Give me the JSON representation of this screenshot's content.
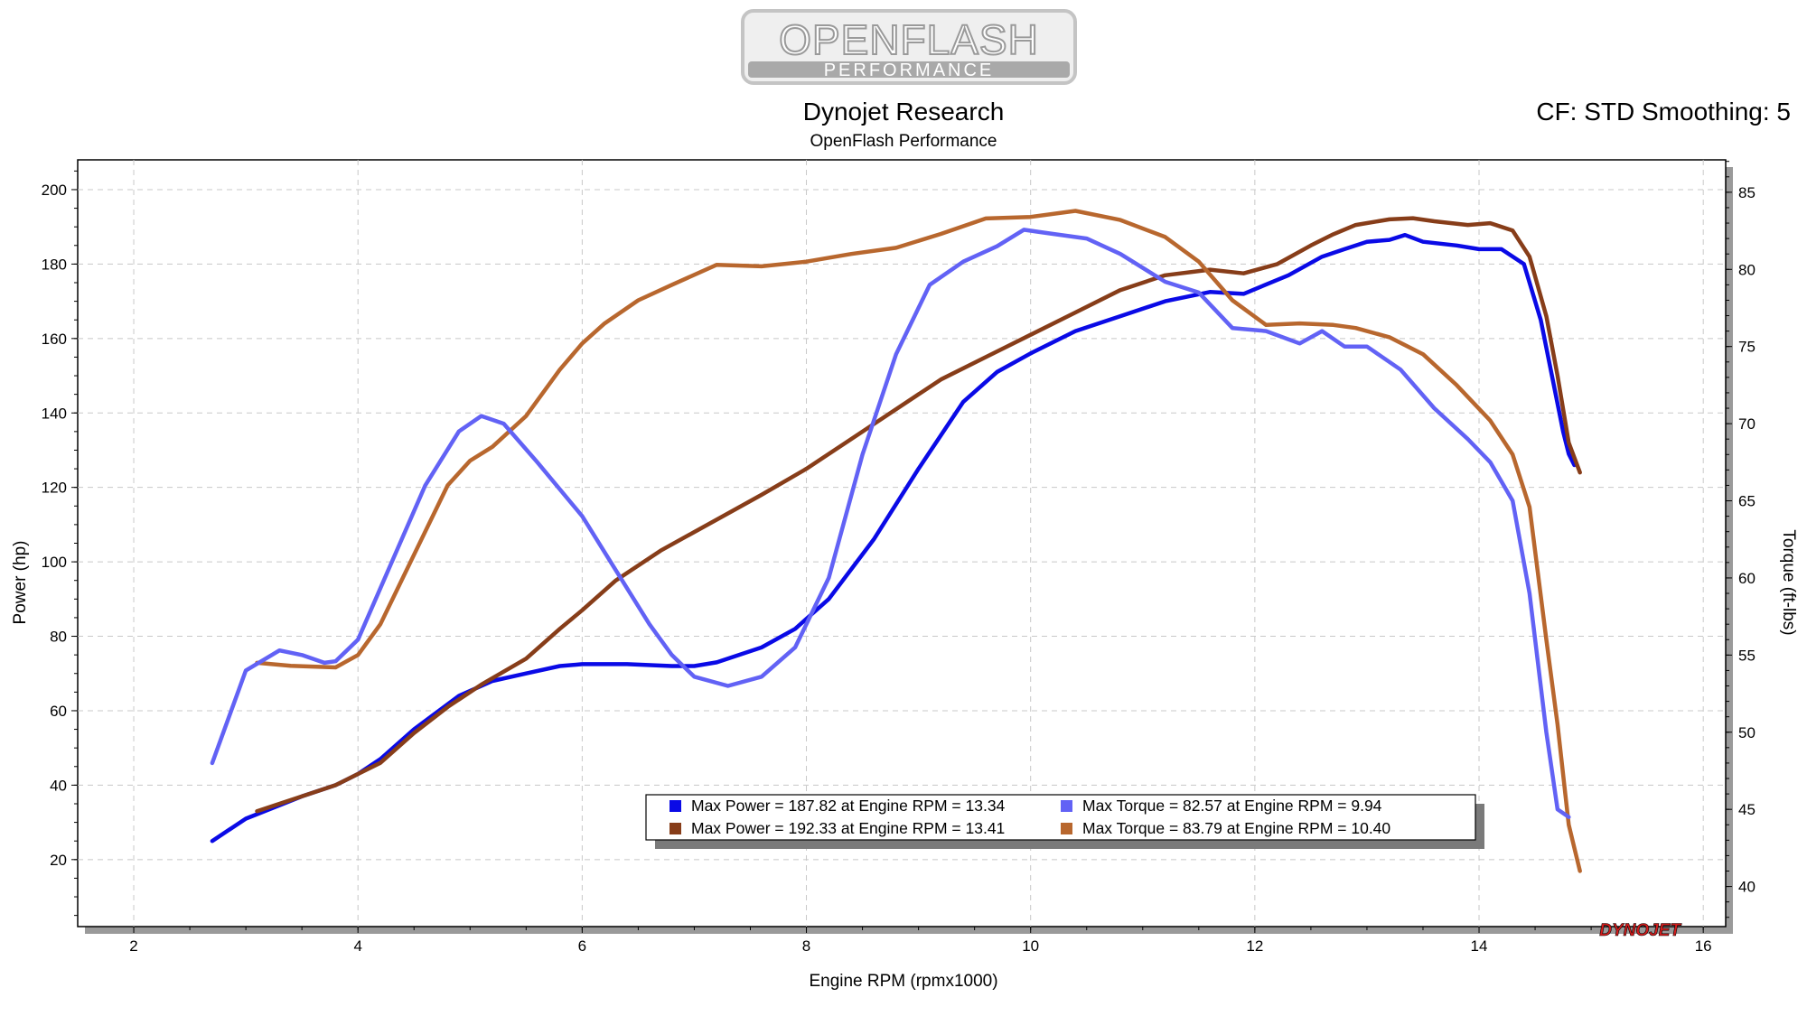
{
  "logo": {
    "line1": "OPENFLASH",
    "line2": "PERFORMANCE"
  },
  "header": {
    "title": "Dynojet Research",
    "subtitle": "OpenFlash Performance",
    "correction": "CF: STD Smoothing: 5"
  },
  "brand": {
    "wordmark": "DYNOJET"
  },
  "chart_data": {
    "type": "line",
    "xlabel": "Engine RPM (rpmx1000)",
    "ylabel": "Power (hp)",
    "y2label": "Torque (ft-lbs)",
    "xlim": [
      1.5,
      16.2
    ],
    "ylim": [
      2,
      208
    ],
    "y2lim": [
      37.4,
      87.1
    ],
    "xticks": [
      2,
      4,
      6,
      8,
      10,
      12,
      14,
      16
    ],
    "yticks": [
      20,
      40,
      60,
      80,
      100,
      120,
      140,
      160,
      180,
      200
    ],
    "y2ticks": [
      40,
      45,
      50,
      55,
      60,
      65,
      70,
      75,
      80,
      85
    ],
    "grid": true,
    "legend_position": "bottom-center",
    "series": [
      {
        "color": "#0a0ae6",
        "axis": "left",
        "legend": "Max Power = 187.82 at Engine RPM = 13.34",
        "x": [
          2.7,
          3.0,
          3.5,
          3.8,
          4.0,
          4.2,
          4.5,
          4.9,
          5.2,
          5.5,
          5.8,
          6.0,
          6.4,
          6.8,
          7.0,
          7.2,
          7.6,
          7.9,
          8.2,
          8.6,
          9.0,
          9.4,
          9.7,
          10.0,
          10.4,
          10.8,
          11.2,
          11.6,
          11.9,
          12.3,
          12.6,
          12.8,
          13.0,
          13.2,
          13.34,
          13.5,
          13.8,
          14.0,
          14.2,
          14.4,
          14.55,
          14.65,
          14.75,
          14.8,
          14.85
        ],
        "y": [
          25,
          31,
          37,
          40,
          43,
          47,
          55,
          64,
          68,
          70,
          72,
          72.5,
          72.5,
          72,
          72,
          73,
          77,
          82,
          90,
          106,
          125,
          143,
          151,
          156,
          162,
          166,
          170,
          172.5,
          172,
          177,
          182,
          184,
          186,
          186.5,
          187.82,
          186,
          185,
          184,
          184,
          180,
          165,
          150,
          135,
          129,
          126
        ]
      },
      {
        "color": "#873d19",
        "axis": "left",
        "legend": "Max Power = 192.33 at Engine RPM = 13.41",
        "x": [
          3.1,
          3.5,
          3.8,
          4.0,
          4.2,
          4.5,
          4.8,
          5.1,
          5.5,
          5.8,
          6.0,
          6.3,
          6.7,
          7.0,
          7.3,
          7.6,
          8.0,
          8.4,
          8.8,
          9.2,
          9.6,
          10.0,
          10.4,
          10.8,
          11.2,
          11.6,
          11.9,
          12.2,
          12.5,
          12.7,
          12.9,
          13.2,
          13.41,
          13.6,
          13.9,
          14.1,
          14.3,
          14.45,
          14.6,
          14.7,
          14.8,
          14.9
        ],
        "y": [
          33,
          37,
          40,
          43,
          46,
          54,
          61,
          67,
          74,
          82,
          87,
          95,
          103,
          108,
          113,
          118,
          125,
          133,
          141,
          149,
          155,
          161,
          167,
          173,
          177,
          178.5,
          177.5,
          180,
          185,
          188,
          190.5,
          192,
          192.33,
          191.5,
          190.5,
          191,
          189,
          182,
          166,
          150,
          132,
          124
        ]
      },
      {
        "color": "#6262f5",
        "axis": "right",
        "legend": "Max Torque = 82.57 at Engine RPM = 9.94",
        "x": [
          2.7,
          3.0,
          3.3,
          3.5,
          3.7,
          3.8,
          4.0,
          4.3,
          4.6,
          4.9,
          5.1,
          5.3,
          5.6,
          6.0,
          6.3,
          6.6,
          6.8,
          7.0,
          7.3,
          7.6,
          7.9,
          8.2,
          8.5,
          8.8,
          9.1,
          9.4,
          9.7,
          9.94,
          10.2,
          10.5,
          10.8,
          11.2,
          11.5,
          11.8,
          12.1,
          12.4,
          12.6,
          12.8,
          13.0,
          13.3,
          13.6,
          13.9,
          14.1,
          14.3,
          14.45,
          14.6,
          14.7,
          14.8
        ],
        "y": [
          48,
          54,
          55.3,
          55,
          54.5,
          54.6,
          56,
          61,
          66,
          69.5,
          70.5,
          70,
          67.5,
          64,
          60.5,
          57,
          55,
          53.6,
          53,
          53.6,
          55.5,
          60,
          68,
          74.5,
          79,
          80.5,
          81.5,
          82.57,
          82.3,
          82,
          81,
          79.2,
          78.5,
          76.2,
          76,
          75.2,
          76,
          75,
          75,
          73.5,
          71,
          69,
          67.5,
          65,
          59,
          50,
          45,
          44.5
        ]
      },
      {
        "color": "#b8672e",
        "axis": "right",
        "legend": "Max Torque = 83.79 at Engine RPM = 10.40",
        "x": [
          3.1,
          3.4,
          3.8,
          4.0,
          4.2,
          4.5,
          4.8,
          5.0,
          5.2,
          5.5,
          5.8,
          6.0,
          6.2,
          6.5,
          6.8,
          7.2,
          7.6,
          8.0,
          8.4,
          8.8,
          9.2,
          9.6,
          10.0,
          10.4,
          10.8,
          11.2,
          11.5,
          11.8,
          12.1,
          12.4,
          12.7,
          12.9,
          13.2,
          13.5,
          13.8,
          14.1,
          14.3,
          14.45,
          14.6,
          14.7,
          14.8,
          14.9
        ],
        "y": [
          54.5,
          54.3,
          54.2,
          55,
          57,
          61.5,
          66,
          67.6,
          68.5,
          70.5,
          73.5,
          75.2,
          76.5,
          78,
          79,
          80.3,
          80.2,
          80.5,
          81,
          81.4,
          82.3,
          83.3,
          83.4,
          83.79,
          83.2,
          82.1,
          80.5,
          78,
          76.4,
          76.5,
          76.4,
          76.2,
          75.6,
          74.5,
          72.5,
          70.2,
          68,
          64.6,
          56,
          50.5,
          44,
          41
        ]
      }
    ]
  }
}
